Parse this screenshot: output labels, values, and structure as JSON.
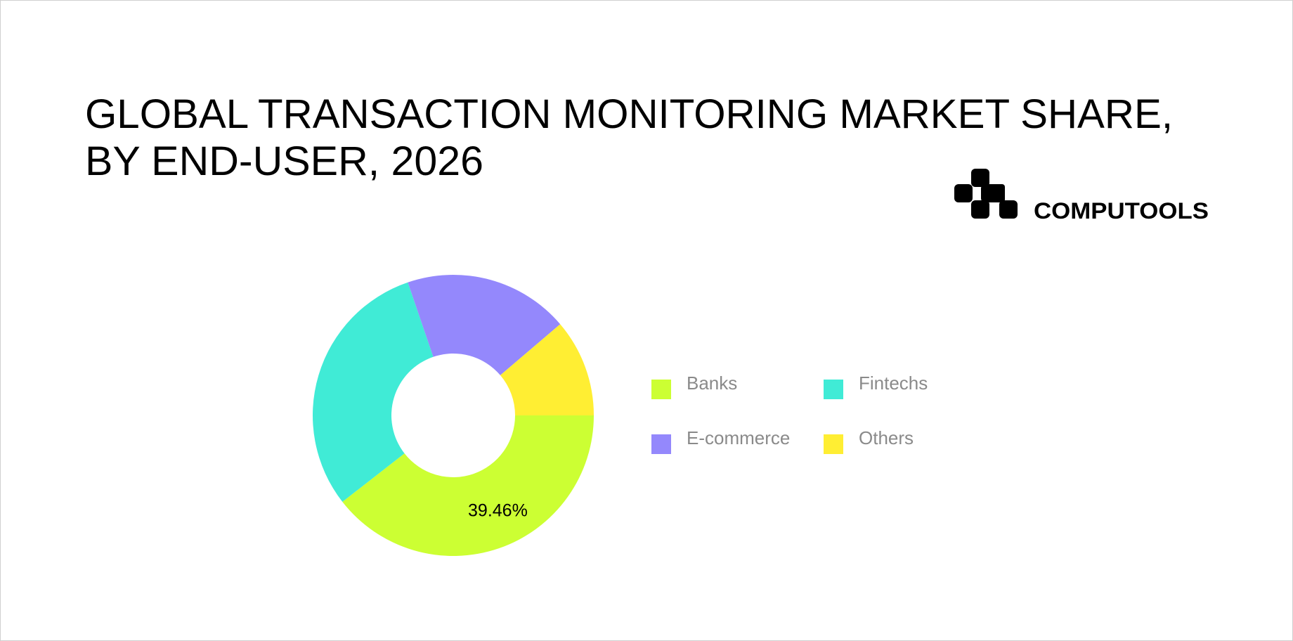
{
  "brand": "COMPUTOOLS",
  "chart_data": {
    "type": "donut",
    "title": [
      "GLOBAL TRANSACTION MONITORING MARKET SHARE,",
      "BY END-USER, 2026"
    ],
    "categories": [
      "Banks",
      "Fintechs",
      "E-commerce",
      "Others"
    ],
    "values": [
      39.46,
      30.3,
      19.0,
      11.24
    ],
    "value_labels": [
      "39.46%",
      null,
      null,
      null
    ],
    "colors": [
      "#ccff33",
      "#40ebd6",
      "#9488fc",
      "#ffee33"
    ]
  }
}
